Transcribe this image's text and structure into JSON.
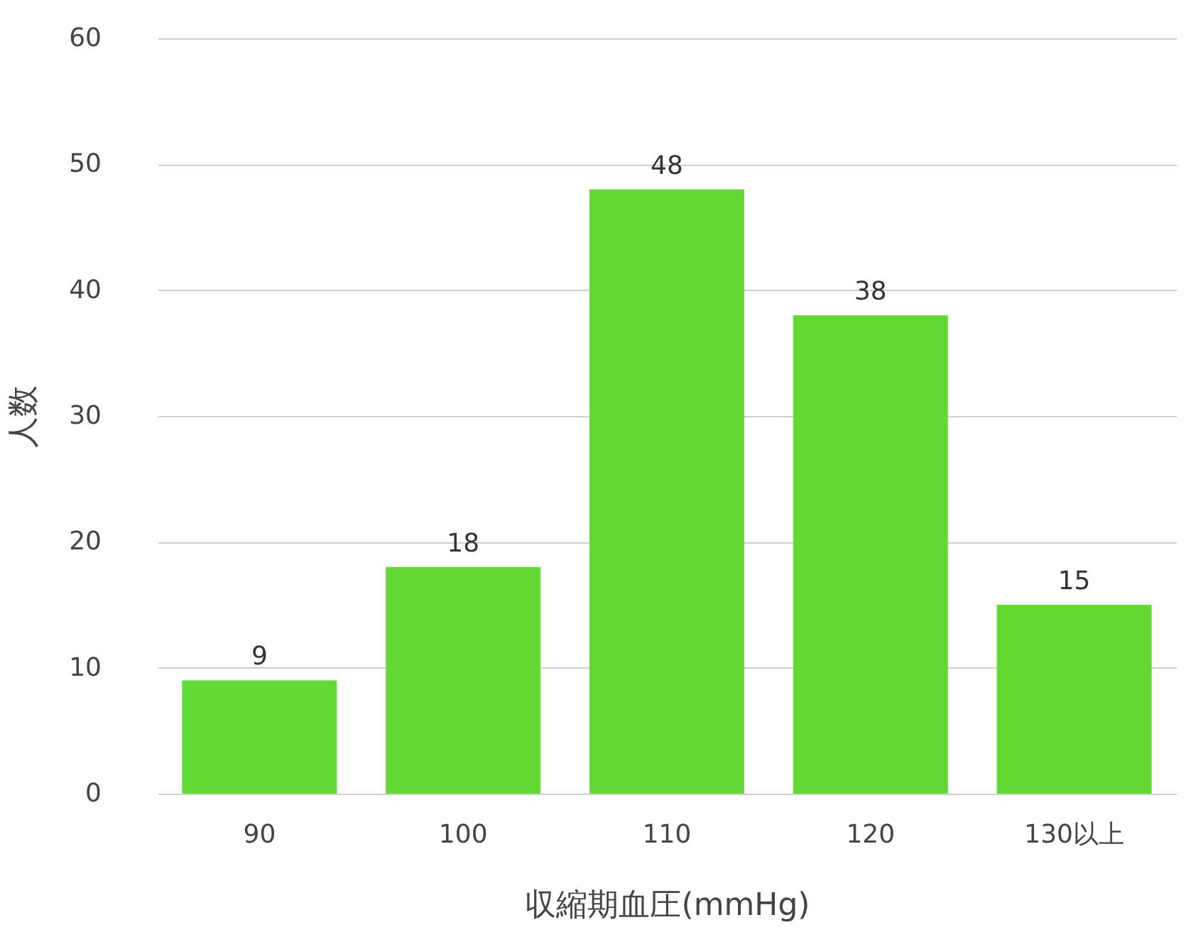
{
  "chart_data": {
    "type": "bar",
    "xlabel": "収縮期血圧(mmHg)",
    "ylabel": "人数",
    "categories": [
      "90",
      "100",
      "110",
      "120",
      "130以上"
    ],
    "values": [
      9,
      18,
      48,
      38,
      15
    ],
    "color": "#62d935",
    "ylim": [
      0,
      60
    ],
    "yticks": [
      0,
      10,
      20,
      30,
      40,
      50,
      60
    ],
    "grid": "y",
    "data_labels": true
  }
}
